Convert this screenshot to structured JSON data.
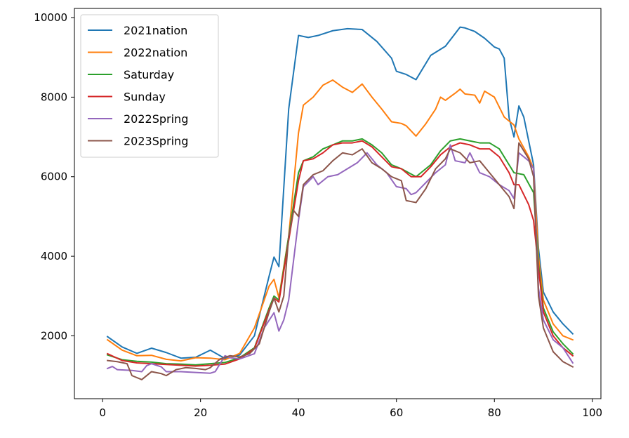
{
  "chart_data": {
    "type": "line",
    "title": "",
    "xlabel": "",
    "ylabel": "",
    "xlim": [
      -5.75,
      101.75
    ],
    "ylim": [
      420,
      10230
    ],
    "xticks": [
      0,
      20,
      40,
      60,
      80,
      100
    ],
    "xtick_labels": [
      "0",
      "20",
      "40",
      "60",
      "80",
      "100"
    ],
    "yticks": [
      2000,
      4000,
      6000,
      8000,
      10000
    ],
    "ytick_labels": [
      "2000",
      "4000",
      "6000",
      "8000",
      "10000"
    ],
    "grid": false,
    "legend_position": "upper-left",
    "series": [
      {
        "name": "2021nation",
        "color": "#1f77b4",
        "points": [
          [
            1,
            1980
          ],
          [
            4,
            1720
          ],
          [
            7,
            1560
          ],
          [
            10,
            1690
          ],
          [
            13,
            1580
          ],
          [
            16,
            1440
          ],
          [
            19,
            1460
          ],
          [
            22,
            1640
          ],
          [
            25,
            1430
          ],
          [
            28,
            1520
          ],
          [
            31,
            2000
          ],
          [
            34,
            3500
          ],
          [
            35,
            3980
          ],
          [
            36,
            3740
          ],
          [
            38,
            7700
          ],
          [
            40,
            9550
          ],
          [
            42,
            9500
          ],
          [
            44,
            9550
          ],
          [
            47,
            9670
          ],
          [
            50,
            9720
          ],
          [
            53,
            9700
          ],
          [
            56,
            9400
          ],
          [
            59,
            8980
          ],
          [
            60,
            8650
          ],
          [
            62,
            8570
          ],
          [
            64,
            8440
          ],
          [
            67,
            9050
          ],
          [
            70,
            9280
          ],
          [
            72,
            9600
          ],
          [
            73,
            9760
          ],
          [
            74,
            9740
          ],
          [
            76,
            9650
          ],
          [
            78,
            9480
          ],
          [
            80,
            9260
          ],
          [
            81,
            9210
          ],
          [
            82,
            8980
          ],
          [
            83,
            7480
          ],
          [
            84,
            7000
          ],
          [
            85,
            7780
          ],
          [
            86,
            7500
          ],
          [
            88,
            6300
          ],
          [
            89,
            4200
          ],
          [
            90,
            3100
          ],
          [
            92,
            2600
          ],
          [
            94,
            2300
          ],
          [
            96,
            2050
          ]
        ]
      },
      {
        "name": "2022nation",
        "color": "#ff7f0e",
        "points": [
          [
            1,
            1900
          ],
          [
            4,
            1640
          ],
          [
            7,
            1500
          ],
          [
            10,
            1510
          ],
          [
            13,
            1410
          ],
          [
            16,
            1370
          ],
          [
            19,
            1450
          ],
          [
            22,
            1440
          ],
          [
            25,
            1400
          ],
          [
            28,
            1560
          ],
          [
            31,
            2200
          ],
          [
            34,
            3250
          ],
          [
            35,
            3420
          ],
          [
            36,
            2960
          ],
          [
            38,
            4500
          ],
          [
            40,
            7100
          ],
          [
            41,
            7800
          ],
          [
            43,
            8000
          ],
          [
            45,
            8300
          ],
          [
            47,
            8430
          ],
          [
            49,
            8250
          ],
          [
            51,
            8120
          ],
          [
            53,
            8330
          ],
          [
            55,
            8000
          ],
          [
            57,
            7700
          ],
          [
            59,
            7380
          ],
          [
            61,
            7340
          ],
          [
            62,
            7280
          ],
          [
            64,
            7020
          ],
          [
            66,
            7330
          ],
          [
            68,
            7700
          ],
          [
            69,
            8000
          ],
          [
            70,
            7920
          ],
          [
            72,
            8100
          ],
          [
            73,
            8200
          ],
          [
            74,
            8080
          ],
          [
            76,
            8050
          ],
          [
            77,
            7850
          ],
          [
            78,
            8150
          ],
          [
            80,
            8000
          ],
          [
            81,
            7750
          ],
          [
            82,
            7500
          ],
          [
            84,
            7300
          ],
          [
            85,
            6950
          ],
          [
            87,
            6500
          ],
          [
            88,
            6200
          ],
          [
            89,
            4000
          ],
          [
            90,
            2900
          ],
          [
            92,
            2300
          ],
          [
            94,
            2000
          ],
          [
            96,
            1900
          ]
        ]
      },
      {
        "name": "Saturday",
        "color": "#2ca02c",
        "points": [
          [
            1,
            1520
          ],
          [
            4,
            1400
          ],
          [
            7,
            1360
          ],
          [
            10,
            1340
          ],
          [
            13,
            1300
          ],
          [
            16,
            1290
          ],
          [
            19,
            1270
          ],
          [
            22,
            1300
          ],
          [
            25,
            1330
          ],
          [
            28,
            1450
          ],
          [
            31,
            1700
          ],
          [
            34,
            2700
          ],
          [
            35,
            3000
          ],
          [
            36,
            2900
          ],
          [
            38,
            4500
          ],
          [
            40,
            6100
          ],
          [
            41,
            6400
          ],
          [
            43,
            6500
          ],
          [
            45,
            6700
          ],
          [
            47,
            6800
          ],
          [
            49,
            6900
          ],
          [
            51,
            6900
          ],
          [
            53,
            6950
          ],
          [
            55,
            6800
          ],
          [
            57,
            6600
          ],
          [
            59,
            6300
          ],
          [
            61,
            6200
          ],
          [
            64,
            6000
          ],
          [
            67,
            6300
          ],
          [
            69,
            6650
          ],
          [
            71,
            6900
          ],
          [
            73,
            6950
          ],
          [
            75,
            6900
          ],
          [
            77,
            6850
          ],
          [
            79,
            6850
          ],
          [
            81,
            6700
          ],
          [
            83,
            6300
          ],
          [
            84,
            6100
          ],
          [
            86,
            6050
          ],
          [
            88,
            5600
          ],
          [
            89,
            3800
          ],
          [
            90,
            2700
          ],
          [
            92,
            2100
          ],
          [
            94,
            1800
          ],
          [
            96,
            1550
          ]
        ]
      },
      {
        "name": "Sunday",
        "color": "#d62728",
        "points": [
          [
            1,
            1550
          ],
          [
            4,
            1380
          ],
          [
            7,
            1320
          ],
          [
            10,
            1300
          ],
          [
            13,
            1280
          ],
          [
            16,
            1260
          ],
          [
            19,
            1240
          ],
          [
            22,
            1260
          ],
          [
            25,
            1290
          ],
          [
            28,
            1420
          ],
          [
            31,
            1680
          ],
          [
            34,
            2650
          ],
          [
            35,
            2950
          ],
          [
            36,
            2850
          ],
          [
            38,
            4400
          ],
          [
            40,
            5900
          ],
          [
            41,
            6400
          ],
          [
            43,
            6450
          ],
          [
            45,
            6600
          ],
          [
            47,
            6800
          ],
          [
            49,
            6850
          ],
          [
            51,
            6850
          ],
          [
            53,
            6900
          ],
          [
            55,
            6750
          ],
          [
            57,
            6500
          ],
          [
            59,
            6250
          ],
          [
            61,
            6200
          ],
          [
            63,
            6000
          ],
          [
            65,
            6000
          ],
          [
            67,
            6250
          ],
          [
            69,
            6550
          ],
          [
            71,
            6750
          ],
          [
            73,
            6850
          ],
          [
            75,
            6800
          ],
          [
            77,
            6700
          ],
          [
            79,
            6700
          ],
          [
            81,
            6500
          ],
          [
            83,
            6100
          ],
          [
            84,
            5800
          ],
          [
            85,
            5800
          ],
          [
            87,
            5300
          ],
          [
            88,
            4900
          ],
          [
            89,
            3700
          ],
          [
            90,
            2600
          ],
          [
            92,
            2000
          ],
          [
            94,
            1700
          ],
          [
            96,
            1500
          ]
        ]
      },
      {
        "name": "2022Spring",
        "color": "#9467bd",
        "points": [
          [
            1,
            1180
          ],
          [
            2,
            1230
          ],
          [
            3,
            1150
          ],
          [
            6,
            1130
          ],
          [
            8,
            1100
          ],
          [
            9,
            1250
          ],
          [
            10,
            1300
          ],
          [
            12,
            1220
          ],
          [
            13,
            1100
          ],
          [
            16,
            1100
          ],
          [
            19,
            1080
          ],
          [
            22,
            1060
          ],
          [
            23,
            1100
          ],
          [
            25,
            1500
          ],
          [
            26,
            1450
          ],
          [
            28,
            1420
          ],
          [
            31,
            1550
          ],
          [
            33,
            2200
          ],
          [
            35,
            2580
          ],
          [
            36,
            2120
          ],
          [
            37,
            2400
          ],
          [
            38,
            2900
          ],
          [
            40,
            4900
          ],
          [
            41,
            5750
          ],
          [
            43,
            6000
          ],
          [
            44,
            5800
          ],
          [
            46,
            6000
          ],
          [
            48,
            6050
          ],
          [
            50,
            6200
          ],
          [
            52,
            6350
          ],
          [
            54,
            6600
          ],
          [
            56,
            6300
          ],
          [
            58,
            6100
          ],
          [
            60,
            5750
          ],
          [
            62,
            5700
          ],
          [
            63,
            5550
          ],
          [
            64,
            5600
          ],
          [
            66,
            5850
          ],
          [
            68,
            6100
          ],
          [
            70,
            6300
          ],
          [
            71,
            6800
          ],
          [
            72,
            6400
          ],
          [
            74,
            6350
          ],
          [
            75,
            6600
          ],
          [
            77,
            6100
          ],
          [
            79,
            6000
          ],
          [
            81,
            5800
          ],
          [
            83,
            5650
          ],
          [
            84,
            5450
          ],
          [
            85,
            6600
          ],
          [
            87,
            6400
          ],
          [
            88,
            6200
          ],
          [
            89,
            3200
          ],
          [
            90,
            2400
          ],
          [
            92,
            1900
          ],
          [
            94,
            1700
          ],
          [
            96,
            1320
          ]
        ]
      },
      {
        "name": "2023Spring",
        "color": "#8c564b",
        "points": [
          [
            1,
            1380
          ],
          [
            3,
            1350
          ],
          [
            5,
            1300
          ],
          [
            6,
            1000
          ],
          [
            8,
            900
          ],
          [
            10,
            1100
          ],
          [
            12,
            1050
          ],
          [
            13,
            1000
          ],
          [
            15,
            1150
          ],
          [
            17,
            1200
          ],
          [
            19,
            1180
          ],
          [
            21,
            1150
          ],
          [
            22,
            1200
          ],
          [
            24,
            1420
          ],
          [
            26,
            1500
          ],
          [
            28,
            1470
          ],
          [
            30,
            1550
          ],
          [
            32,
            1800
          ],
          [
            34,
            2600
          ],
          [
            35,
            2950
          ],
          [
            36,
            2600
          ],
          [
            37,
            3000
          ],
          [
            38,
            4500
          ],
          [
            39,
            5150
          ],
          [
            40,
            5000
          ],
          [
            41,
            5800
          ],
          [
            43,
            6050
          ],
          [
            45,
            6150
          ],
          [
            47,
            6400
          ],
          [
            49,
            6600
          ],
          [
            51,
            6550
          ],
          [
            53,
            6700
          ],
          [
            55,
            6350
          ],
          [
            57,
            6200
          ],
          [
            59,
            6000
          ],
          [
            61,
            5900
          ],
          [
            62,
            5400
          ],
          [
            64,
            5350
          ],
          [
            66,
            5700
          ],
          [
            68,
            6200
          ],
          [
            70,
            6450
          ],
          [
            71,
            6700
          ],
          [
            73,
            6600
          ],
          [
            75,
            6350
          ],
          [
            77,
            6400
          ],
          [
            79,
            6100
          ],
          [
            81,
            5800
          ],
          [
            83,
            5500
          ],
          [
            84,
            5200
          ],
          [
            85,
            6850
          ],
          [
            87,
            6450
          ],
          [
            88,
            6000
          ],
          [
            89,
            3000
          ],
          [
            90,
            2200
          ],
          [
            92,
            1600
          ],
          [
            94,
            1350
          ],
          [
            96,
            1220
          ]
        ]
      }
    ]
  }
}
